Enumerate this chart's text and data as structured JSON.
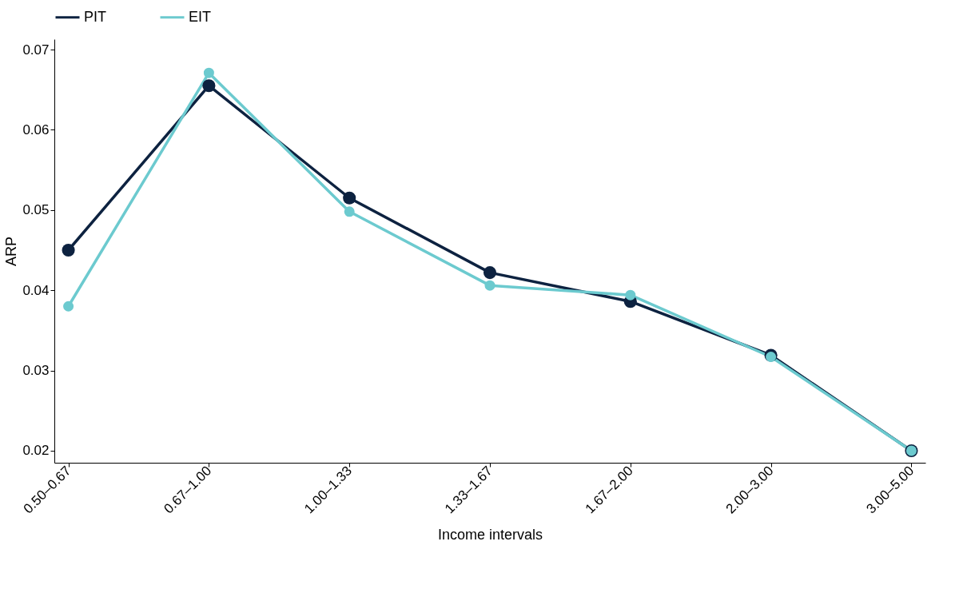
{
  "chart_data": {
    "type": "line",
    "xlabel": "Income intervals",
    "ylabel": "ARP",
    "categories": [
      "0.50–0.67",
      "0.67–1.00",
      "1.00–1.33",
      "1.33–1.67",
      "1.67–2.00",
      "2.00–3.00",
      "3.00–5.00"
    ],
    "series": [
      {
        "name": "PIT",
        "color": "#0d2240",
        "values": [
          0.045,
          0.0655,
          0.0515,
          0.0422,
          0.0386,
          0.0319,
          0.02
        ]
      },
      {
        "name": "EIT",
        "color": "#6ccacf",
        "values": [
          0.038,
          0.0671,
          0.0498,
          0.0406,
          0.0394,
          0.0317,
          0.02
        ]
      }
    ],
    "ylim": [
      0.0185,
      0.0713
    ],
    "yticks": [
      0.02,
      0.03,
      0.04,
      0.05,
      0.06,
      0.07
    ],
    "grid": false,
    "legend": "top left",
    "marker": "circle",
    "line_style": "solid"
  }
}
